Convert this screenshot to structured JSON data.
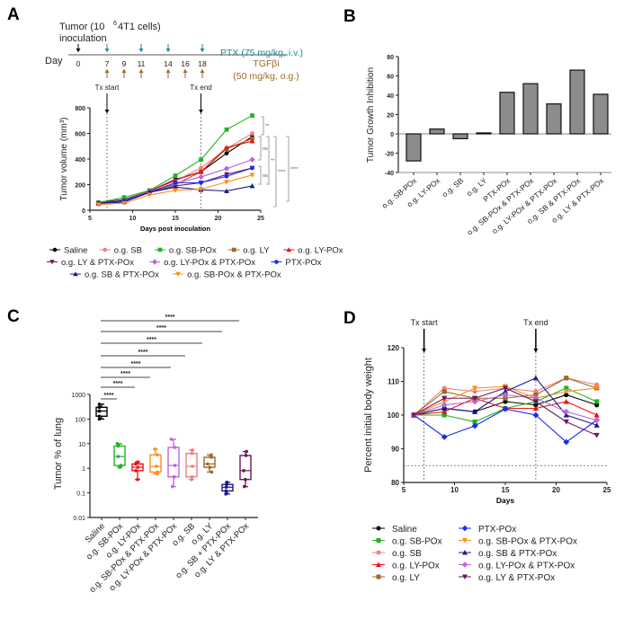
{
  "panels": [
    "A",
    "B",
    "C",
    "D"
  ],
  "timeline": {
    "title_main": "Tumor (10",
    "title_sup": "6",
    "title_rest": " 4T1 cells)",
    "title_line2": "inoculation",
    "day_label": "Day",
    "days": [
      "0",
      "7",
      "9",
      "11",
      "14",
      "16",
      "18"
    ],
    "ptx_days": [
      7,
      11,
      14,
      18
    ],
    "tgf_days": [
      7,
      9,
      11,
      14,
      16,
      18
    ],
    "ptx_label": "PTX (75 mg/kg, i.v.)",
    "tgf_label": "TGFβi",
    "tgf_dose": "(50 mg/kg, o.g.)",
    "colors": {
      "ptx": "#1a8a9a",
      "tgf": "#9a6a2a"
    }
  },
  "chart_data": [
    {
      "type": "line",
      "title": "",
      "xlabel": "Days post inoculation",
      "ylabel": "Tumor volume (mm³)",
      "xlim": [
        5,
        25
      ],
      "ylim": [
        0,
        800
      ],
      "xticks": [
        "5",
        "10",
        "15",
        "20",
        "25"
      ],
      "yticks": [
        "0",
        "200",
        "400",
        "600",
        "800"
      ],
      "annotations": {
        "tx_start": "Tx start",
        "tx_end": "Tx end",
        "tx_start_day": 7,
        "tx_end_day": 18
      },
      "significance": [
        "**",
        "ns",
        "**",
        "****",
        "****",
        "ns"
      ],
      "x": [
        6,
        9,
        12,
        15,
        18,
        21,
        24
      ],
      "series": [
        {
          "name": "Saline",
          "color": "#000000",
          "marker": "circle",
          "values": [
            60,
            85,
            150,
            240,
            300,
            445,
            575
          ]
        },
        {
          "name": "o.g. SB",
          "color": "#f08080",
          "marker": "circle",
          "values": [
            55,
            80,
            150,
            230,
            330,
            480,
            600
          ]
        },
        {
          "name": "o.g. SB-POx",
          "color": "#22b322",
          "marker": "square",
          "values": [
            60,
            100,
            155,
            270,
            395,
            630,
            740
          ]
        },
        {
          "name": "o.g. LY",
          "color": "#9a6a2a",
          "marker": "square",
          "values": [
            55,
            75,
            150,
            200,
            300,
            480,
            560
          ]
        },
        {
          "name": "o.g. LY-POx",
          "color": "#ee1111",
          "marker": "triangle",
          "values": [
            55,
            70,
            150,
            235,
            300,
            490,
            540
          ]
        },
        {
          "name": "o.g. LY & PTX-POx",
          "color": "#6a1a5a",
          "marker": "tri-down",
          "values": [
            50,
            65,
            140,
            190,
            215,
            280,
            330
          ]
        },
        {
          "name": "o.g. LY-POx & PTX-POx",
          "color": "#bb66dd",
          "marker": "diamond",
          "values": [
            50,
            70,
            145,
            210,
            260,
            325,
            395
          ]
        },
        {
          "name": "PTX-POx",
          "color": "#1a2aee",
          "marker": "circle",
          "values": [
            55,
            75,
            140,
            215,
            215,
            265,
            330
          ]
        },
        {
          "name": "o.g. SB & PTX-POx",
          "color": "#1a1a8a",
          "marker": "triangle",
          "values": [
            55,
            65,
            140,
            180,
            160,
            150,
            190
          ]
        },
        {
          "name": "o.g. SB-POx & PTX-POx",
          "color": "#ff8c1a",
          "marker": "tri-down",
          "values": [
            45,
            55,
            120,
            155,
            165,
            220,
            275
          ]
        }
      ]
    },
    {
      "type": "bar",
      "title": "",
      "xlabel": "",
      "ylabel": "Tumor Growth Inhibition",
      "ylim": [
        -40,
        80
      ],
      "yticks": [
        "-40",
        "-20",
        "0",
        "20",
        "40",
        "60",
        "80"
      ],
      "categories": [
        "o.g. SB-POx",
        "o.g. LY-POx",
        "o.g. SB",
        "o.g. LY",
        "PTX-POx",
        "o.g. SB-POx & PTX-POx",
        "o.g. LY-POx & PTX-POx",
        "o.g. SB & PTX-POx",
        "o.g. LY & PTX-POx"
      ],
      "values": [
        -28,
        5,
        -5,
        1,
        43,
        52,
        31,
        66,
        41
      ]
    },
    {
      "type": "box",
      "title": "",
      "xlabel": "",
      "ylabel": "Tumor % of lung",
      "yscale": "log",
      "ylim": [
        0.01,
        1000
      ],
      "yticks": [
        "0.01",
        "0.1",
        "1",
        "10",
        "100",
        "1000"
      ],
      "significance_label": "****",
      "significance_count": 8,
      "categories": [
        "Saline",
        "o.g. SB-POx",
        "o.g. LY-POx",
        "o.g. SB-POx & PTX-POx",
        "o.g. LY-POx & PTX-POx",
        "o.g. SB",
        "o.g. LY",
        "o.g. SB + PTX-POx",
        "o.g. LY & PTX-POx"
      ],
      "colors": [
        "#000000",
        "#22b322",
        "#ee1111",
        "#ff8c1a",
        "#bb66dd",
        "#f08080",
        "#9a6a2a",
        "#1a1a8a",
        "#6a1a5a"
      ],
      "boxes": [
        {
          "min": 100,
          "q1": 130,
          "median": 210,
          "q3": 300,
          "max": 400
        },
        {
          "min": 1.1,
          "q1": 1.3,
          "median": 3,
          "q3": 8,
          "max": 10
        },
        {
          "min": 0.35,
          "q1": 0.8,
          "median": 1.1,
          "q3": 1.5,
          "max": 1.8
        },
        {
          "min": 0.6,
          "q1": 0.7,
          "median": 1.2,
          "q3": 3.5,
          "max": 6
        },
        {
          "min": 0.18,
          "q1": 0.45,
          "median": 1.3,
          "q3": 7,
          "max": 15
        },
        {
          "min": 0.35,
          "q1": 0.45,
          "median": 1.2,
          "q3": 4,
          "max": 5.5
        },
        {
          "min": 0.7,
          "q1": 1.1,
          "median": 1.5,
          "q3": 2.8,
          "max": 3.5
        },
        {
          "min": 0.09,
          "q1": 0.12,
          "median": 0.17,
          "q3": 0.22,
          "max": 0.27
        },
        {
          "min": 0.18,
          "q1": 0.35,
          "median": 0.8,
          "q3": 3.3,
          "max": 4.8
        }
      ]
    },
    {
      "type": "line",
      "title": "",
      "xlabel": "Days",
      "ylabel": "Percent initial body weight",
      "xlim": [
        5,
        25
      ],
      "ylim": [
        80,
        120
      ],
      "xticks": [
        "5",
        "10",
        "15",
        "20",
        "25"
      ],
      "yticks": [
        "80",
        "90",
        "100",
        "110",
        "120"
      ],
      "threshold": 85,
      "annotations": {
        "tx_start": "Tx start",
        "tx_end": "Tx end",
        "tx_start_day": 7,
        "tx_end_day": 18
      },
      "x": [
        6,
        9,
        12,
        15,
        18,
        21,
        24
      ],
      "series": [
        {
          "name": "Saline",
          "color": "#000000",
          "marker": "circle",
          "values": [
            100,
            102,
            101,
            104,
            103,
            106,
            103
          ]
        },
        {
          "name": "o.g. SB-POx",
          "color": "#22b322",
          "marker": "square",
          "values": [
            100,
            100,
            98,
            102,
            104,
            108,
            104
          ]
        },
        {
          "name": "o.g. SB",
          "color": "#f08080",
          "marker": "circle",
          "values": [
            100,
            108,
            107,
            108,
            107,
            111,
            109
          ]
        },
        {
          "name": "o.g. LY-POx",
          "color": "#ee1111",
          "marker": "triangle",
          "values": [
            100,
            101,
            105,
            102,
            102,
            104,
            100
          ]
        },
        {
          "name": "o.g. LY",
          "color": "#9a6a2a",
          "marker": "square",
          "values": [
            100,
            107,
            105,
            105,
            106,
            111,
            108
          ]
        },
        {
          "name": "PTX-POx",
          "color": "#1a2aee",
          "marker": "diamond",
          "values": [
            100,
            93.5,
            96.8,
            101.8,
            100,
            92,
            98.5
          ]
        },
        {
          "name": "o.g. SB-POx & PTX-POx",
          "color": "#ff8c1a",
          "marker": "tri-down",
          "values": [
            100,
            104,
            108,
            108.5,
            105,
            107,
            108
          ]
        },
        {
          "name": "o.g. SB & PTX-POx",
          "color": "#1a1a8a",
          "marker": "triangle",
          "values": [
            100,
            102,
            101,
            107,
            111,
            100,
            97
          ]
        },
        {
          "name": "o.g. LY-POx & PTX-POx",
          "color": "#bb66dd",
          "marker": "diamond",
          "values": [
            100,
            103,
            104,
            106,
            105,
            101,
            98.5
          ]
        },
        {
          "name": "o.g. LY & PTX-POx",
          "color": "#6a1a5a",
          "marker": "tri-down",
          "values": [
            100,
            105,
            105,
            108,
            104,
            98,
            94
          ]
        }
      ]
    }
  ]
}
